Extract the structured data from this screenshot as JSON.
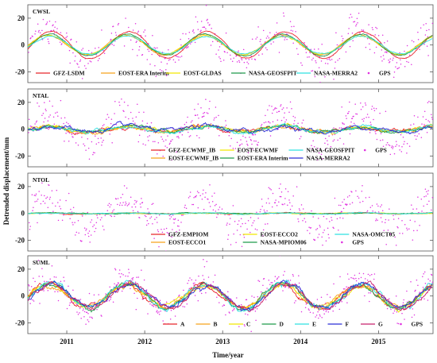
{
  "figure": {
    "xlabel": "Time/year",
    "ylabel": "Detrended displacement/mm"
  },
  "chart_data": [
    {
      "type": "line",
      "panel_label": "CWSL",
      "xlim": [
        2010.5,
        2015.7
      ],
      "ylim": [
        -28,
        30
      ],
      "yticks": [
        -20,
        0,
        20
      ],
      "series": [
        {
          "name": "GFZ-LSDM",
          "color": "#e8262b",
          "kind": "line",
          "amplitude": 10,
          "phase": 0.55,
          "noise": 0.4
        },
        {
          "name": "EOST-ERA Interim",
          "color": "#f7a21b",
          "kind": "line",
          "amplitude": 7.5,
          "phase": 0.5,
          "noise": 0.4
        },
        {
          "name": "EOST-GLDAS",
          "color": "#f2e600",
          "kind": "line",
          "amplitude": 7,
          "phase": 0.5,
          "noise": 0.4
        },
        {
          "name": "NASA-GEOSFPIT",
          "color": "#1f9a4a",
          "kind": "line",
          "amplitude": 8,
          "phase": 0.5,
          "noise": 0.4
        },
        {
          "name": "NASA-MERRA2",
          "color": "#2fe0e0",
          "kind": "line",
          "amplitude": 6.5,
          "phase": 0.5,
          "noise": 0.4
        },
        {
          "name": "GPS",
          "color": "#e030e0",
          "kind": "scatter",
          "amplitude": 12,
          "phase": 0.5,
          "noise": 6
        }
      ],
      "legend": [
        "GFZ-LSDM",
        "EOST-ERA Interim",
        "EOST-GLDAS",
        "NASA-GEOSFPIT",
        "NASA-MERRA2",
        "GPS"
      ]
    },
    {
      "type": "line",
      "panel_label": "NTAL",
      "xlim": [
        2010.5,
        2015.7
      ],
      "ylim": [
        -28,
        30
      ],
      "yticks": [
        -20,
        0,
        20
      ],
      "series": [
        {
          "name": "GFZ-ECWMF_IB",
          "color": "#e8262b",
          "kind": "line",
          "amplitude": 2,
          "phase": 0.5,
          "noise": 1.2
        },
        {
          "name": "EOST-ECWMF_IB",
          "color": "#f7a21b",
          "kind": "line",
          "amplitude": 2,
          "phase": 0.5,
          "noise": 1.2
        },
        {
          "name": "EOST-ECWMF",
          "color": "#f2e600",
          "kind": "line",
          "amplitude": 2,
          "phase": 0.5,
          "noise": 1.2
        },
        {
          "name": "EOST-ERA Interim",
          "color": "#1f9a4a",
          "kind": "line",
          "amplitude": 2,
          "phase": 0.5,
          "noise": 1.2
        },
        {
          "name": "NASA-GEOSFPIT",
          "color": "#2fe0e0",
          "kind": "line",
          "amplitude": 2,
          "phase": 0.5,
          "noise": 1.2
        },
        {
          "name": "NASA-MERRA2",
          "color": "#2b2fd6",
          "kind": "line",
          "amplitude": 2,
          "phase": 0.5,
          "noise": 1.5
        },
        {
          "name": "GPS",
          "color": "#e030e0",
          "kind": "scatter",
          "amplitude": 12,
          "phase": 0.5,
          "noise": 6
        }
      ],
      "legend": [
        "GFZ-ECWMF_IB",
        "EOST-ECWMF",
        "NASA-GEOSFPIT",
        "GPS",
        "EOST-ECWMF_IB",
        "EOST-ERA Interim",
        "NASA-MERRA2"
      ]
    },
    {
      "type": "line",
      "panel_label": "NTOL",
      "xlim": [
        2010.5,
        2015.7
      ],
      "ylim": [
        -28,
        30
      ],
      "yticks": [
        -20,
        0,
        20
      ],
      "series": [
        {
          "name": "GFZ-EMPIOM",
          "color": "#e8262b",
          "kind": "line",
          "amplitude": 0.3,
          "phase": 0.5,
          "noise": 0.3
        },
        {
          "name": "EOST-ECCO1",
          "color": "#f7a21b",
          "kind": "line",
          "amplitude": 0.3,
          "phase": 0.5,
          "noise": 0.3
        },
        {
          "name": "EOST-ECCO2",
          "color": "#f2e600",
          "kind": "line",
          "amplitude": 0.3,
          "phase": 0.5,
          "noise": 0.3
        },
        {
          "name": "NASA-MPIOM06",
          "color": "#1f9a4a",
          "kind": "line",
          "amplitude": 0.3,
          "phase": 0.5,
          "noise": 0.3
        },
        {
          "name": "NASA-OMCT05",
          "color": "#2fe0e0",
          "kind": "line",
          "amplitude": 0.3,
          "phase": 0.5,
          "noise": 0.3
        },
        {
          "name": "GPS",
          "color": "#e030e0",
          "kind": "scatter",
          "amplitude": 12,
          "phase": 0.5,
          "noise": 6
        }
      ],
      "legend": [
        "GFZ-EMPIOM",
        "EOST-ECCO2",
        "NASA-OMCT05",
        "EOST-ECCO1",
        "NASA-MPIOM06",
        "GPS"
      ]
    },
    {
      "type": "line",
      "panel_label": "SUML",
      "xlim": [
        2010.5,
        2015.7
      ],
      "ylim": [
        -28,
        30
      ],
      "yticks": [
        -20,
        0,
        20
      ],
      "series": [
        {
          "name": "A",
          "color": "#e8262b",
          "kind": "line",
          "amplitude": 9,
          "phase": 0.5,
          "noise": 1.6
        },
        {
          "name": "B",
          "color": "#f7a21b",
          "kind": "line",
          "amplitude": 8,
          "phase": 0.5,
          "noise": 1.6
        },
        {
          "name": "C",
          "color": "#f2e600",
          "kind": "line",
          "amplitude": 8,
          "phase": 0.5,
          "noise": 1.6
        },
        {
          "name": "D",
          "color": "#1f9a4a",
          "kind": "line",
          "amplitude": 9,
          "phase": 0.5,
          "noise": 1.6
        },
        {
          "name": "E",
          "color": "#2fe0e0",
          "kind": "line",
          "amplitude": 9.5,
          "phase": 0.5,
          "noise": 1.8
        },
        {
          "name": "F",
          "color": "#2b2fd6",
          "kind": "line",
          "amplitude": 9,
          "phase": 0.5,
          "noise": 1.8
        },
        {
          "name": "G",
          "color": "#c8206c",
          "kind": "line",
          "amplitude": 9,
          "phase": 0.5,
          "noise": 1.6
        },
        {
          "name": "GPS",
          "color": "#e030e0",
          "kind": "scatter",
          "amplitude": 12,
          "phase": 0.5,
          "noise": 6
        }
      ],
      "legend": [
        "A",
        "B",
        "C",
        "D",
        "E",
        "F",
        "G",
        "GPS"
      ]
    }
  ],
  "xticks": [
    2011,
    2012,
    2013,
    2014,
    2015
  ],
  "xtick_labels": [
    "2011",
    "2012",
    "2013",
    "2014",
    "2015"
  ]
}
